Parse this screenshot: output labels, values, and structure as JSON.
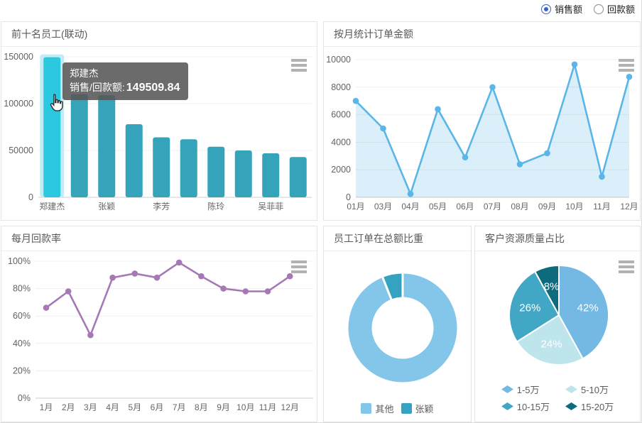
{
  "topbar": {
    "radios": [
      {
        "label": "销售额",
        "checked": true
      },
      {
        "label": "回款额",
        "checked": false
      }
    ]
  },
  "tooltip": {
    "name": "郑建杰",
    "label": "销售/回款额:",
    "value": "149509.84"
  },
  "chart_data": [
    {
      "id": "top-employees",
      "type": "bar",
      "title": "前十名员工(联动)",
      "categories": [
        "郑建杰",
        "",
        "张颖",
        "",
        "李芳",
        "",
        "陈玲",
        "",
        "吴菲菲",
        ""
      ],
      "values": [
        149509.84,
        110000,
        109000,
        78000,
        64000,
        62000,
        54000,
        50000,
        47000,
        43000
      ],
      "highlight_index": 0,
      "yticks": [
        0,
        50000,
        100000,
        150000
      ],
      "ylim": [
        0,
        150000
      ],
      "bar_color": "#35a3ba",
      "highlight_color": "#2bc8e0",
      "halo_color": "#c0edf5",
      "grid": true,
      "legend_position": "none"
    },
    {
      "id": "monthly-orders",
      "type": "line",
      "title": "按月统计订单金额",
      "categories": [
        "01月",
        "03月",
        "04月",
        "05月",
        "06月",
        "07月",
        "08月",
        "09月",
        "10月",
        "11月",
        "12月"
      ],
      "values": [
        7000,
        5000,
        250,
        6400,
        2900,
        8000,
        2400,
        3200,
        9650,
        1500,
        8750
      ],
      "yticks": [
        0,
        2000,
        4000,
        6000,
        8000,
        10000
      ],
      "ylim": [
        0,
        10000
      ],
      "line_color": "#5bb6e8",
      "area_color": "rgba(91,182,232,0.22)",
      "grid": true,
      "legend_position": "none"
    },
    {
      "id": "monthly-rate",
      "type": "line",
      "title": "每月回款率",
      "categories": [
        "1月",
        "2月",
        "3月",
        "4月",
        "5月",
        "6月",
        "7月",
        "8月",
        "9月",
        "10月",
        "11月",
        "12月"
      ],
      "values": [
        66,
        78,
        46,
        88,
        91,
        88,
        99,
        89,
        80,
        78,
        78,
        89
      ],
      "yticks": [
        0,
        20,
        40,
        60,
        80,
        100
      ],
      "ytick_suffix": "%",
      "ylim": [
        0,
        100
      ],
      "line_color": "#a678b5",
      "grid": true,
      "legend_position": "none"
    },
    {
      "id": "order-share",
      "type": "pie",
      "donut": true,
      "title": "员工订单在总额比重",
      "slices": [
        {
          "name": "其他",
          "value": 94,
          "color": "#84c6ea"
        },
        {
          "name": "张颖",
          "value": 6,
          "color": "#35a2c2"
        }
      ],
      "legend_position": "bottom"
    },
    {
      "id": "customer-quality",
      "type": "pie",
      "donut": false,
      "title": "客户资源质量占比",
      "slices": [
        {
          "name": "1-5万",
          "value": 42,
          "label": "42%",
          "color": "#74b9e3"
        },
        {
          "name": "5-10万",
          "value": 24,
          "label": "24%",
          "color": "#bfe5ec"
        },
        {
          "name": "10-15万",
          "value": 26,
          "label": "26%",
          "color": "#42a6c5"
        },
        {
          "name": "15-20万",
          "value": 8,
          "label": "8%",
          "color": "#0d6b7d"
        }
      ],
      "legend_position": "bottom"
    }
  ]
}
